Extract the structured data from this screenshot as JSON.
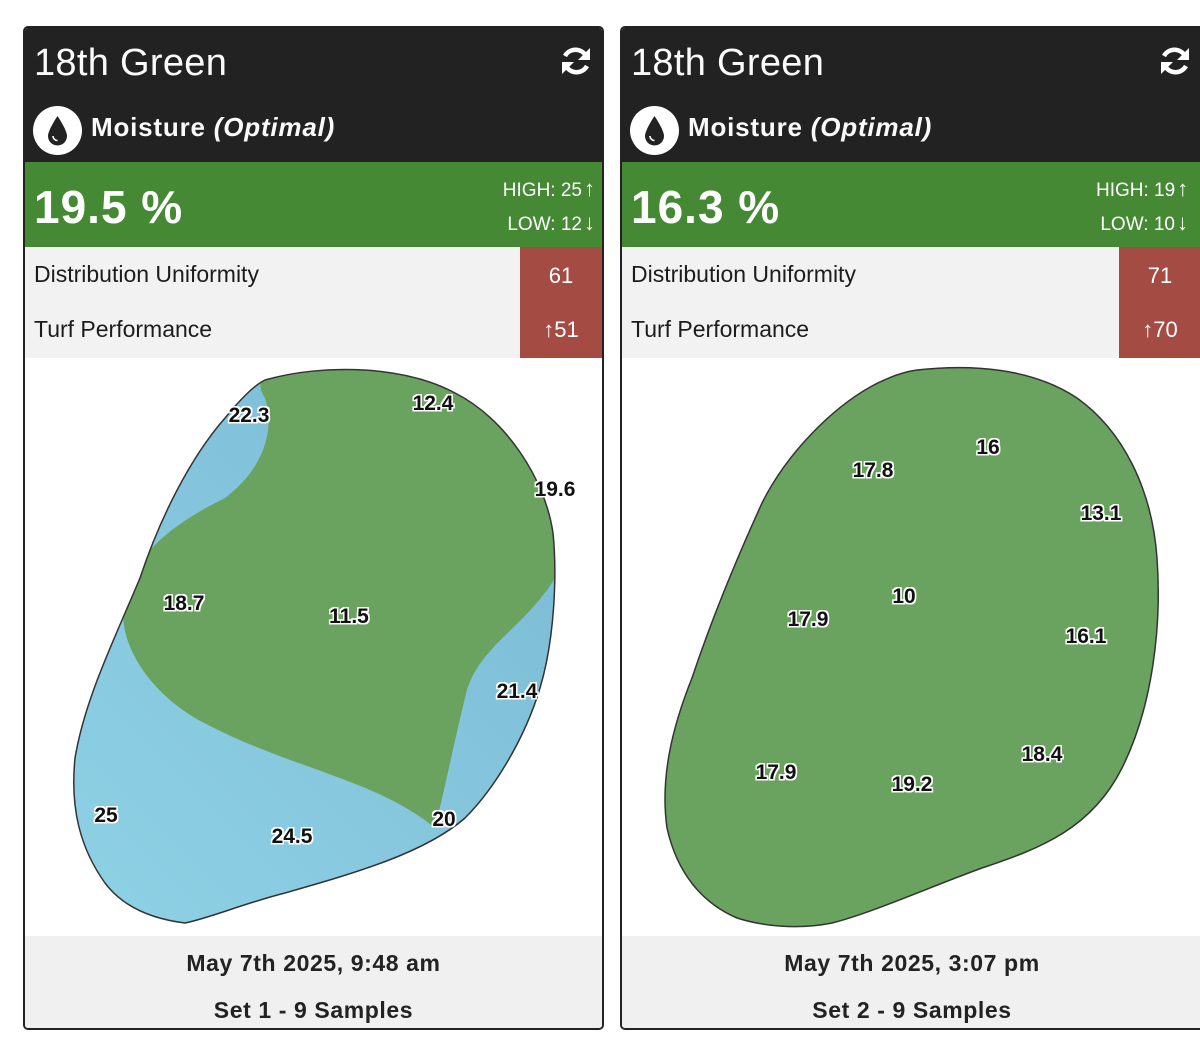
{
  "colors": {
    "header_bg": "#222222",
    "optimal_green": "#458935",
    "score_red": "#a44b44",
    "map_green": "#6aa35f",
    "map_blue": "#87c5dc"
  },
  "cards": [
    {
      "title": "18th Green",
      "refresh_icon": "refresh-icon",
      "drop_icon": "water-drop-icon",
      "metric": "Moisture",
      "status": "(Optimal)",
      "value": "19.5 %",
      "high": "HIGH: 25",
      "low": "LOW: 12",
      "du_label": "Distribution Uniformity",
      "du_value": "61",
      "tp_label": "Turf Performance",
      "tp_value": "51",
      "samples": [
        "22.3",
        "12.4",
        "19.6",
        "18.7",
        "11.5",
        "21.4",
        "25",
        "24.5",
        "20"
      ],
      "date": "May 7th 2025, 9:48 am",
      "set": "Set 1 - 9 Samples"
    },
    {
      "title": "18th Green",
      "refresh_icon": "refresh-icon",
      "drop_icon": "water-drop-icon",
      "metric": "Moisture",
      "status": "(Optimal)",
      "value": "16.3 %",
      "high": "HIGH: 19",
      "low": "LOW: 10",
      "du_label": "Distribution Uniformity",
      "du_value": "71",
      "tp_label": "Turf Performance",
      "tp_value": "70",
      "samples": [
        "17.8",
        "16",
        "13.1",
        "17.9",
        "10",
        "16.1",
        "17.9",
        "19.2",
        "18.4"
      ],
      "date": "May 7th 2025, 3:07 pm",
      "set": "Set 2 - 9 Samples"
    }
  ]
}
